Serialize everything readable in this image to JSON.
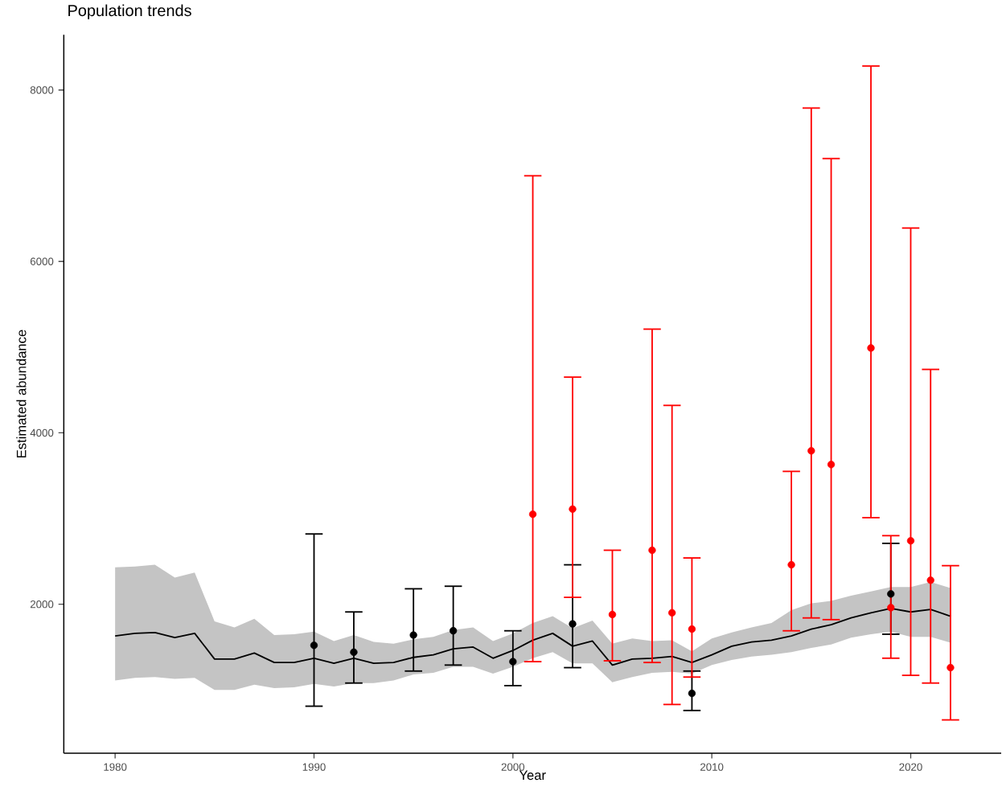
{
  "chart_data": {
    "type": "line",
    "title": "Population trends",
    "xlabel": "Year",
    "ylabel": "Estimated abundance",
    "xlim": [
      1977.42,
      2024.55
    ],
    "ylim": [
      262,
      8645
    ],
    "xticks": [
      1980,
      1990,
      2000,
      2010,
      2020
    ],
    "yticks": [
      2000,
      4000,
      6000,
      8000
    ],
    "grid": false,
    "series": [
      {
        "color": "#000000",
        "marker": "none",
        "x": [
          1980,
          1981,
          1982,
          1983,
          1984,
          1985,
          1986,
          1987,
          1988,
          1989,
          1990,
          1991,
          1992,
          1993,
          1994,
          1995,
          1996,
          1997,
          1998,
          1999,
          2000,
          2001,
          2002,
          2003,
          2004,
          2005,
          2006,
          2007,
          2008,
          2009,
          2010,
          2011,
          2012,
          2013,
          2014,
          2015,
          2016,
          2017,
          2018,
          2019,
          2020,
          2021,
          2022
        ],
        "values": [
          1630,
          1660,
          1670,
          1610,
          1660,
          1360,
          1360,
          1430,
          1320,
          1320,
          1370,
          1310,
          1370,
          1310,
          1320,
          1380,
          1410,
          1480,
          1500,
          1370,
          1460,
          1580,
          1660,
          1510,
          1570,
          1290,
          1360,
          1370,
          1390,
          1320,
          1410,
          1510,
          1560,
          1580,
          1630,
          1710,
          1760,
          1840,
          1900,
          1950,
          1910,
          1940,
          1860
        ],
        "lower": [
          1110,
          1140,
          1150,
          1130,
          1140,
          1000,
          1000,
          1060,
          1020,
          1030,
          1070,
          1040,
          1080,
          1080,
          1110,
          1180,
          1200,
          1270,
          1270,
          1190,
          1270,
          1370,
          1440,
          1310,
          1310,
          1090,
          1150,
          1200,
          1210,
          1190,
          1290,
          1350,
          1390,
          1410,
          1440,
          1490,
          1530,
          1610,
          1650,
          1680,
          1620,
          1620,
          1550
        ],
        "upper": [
          2430,
          2440,
          2460,
          2310,
          2370,
          1800,
          1730,
          1830,
          1640,
          1650,
          1680,
          1570,
          1640,
          1560,
          1540,
          1590,
          1620,
          1700,
          1730,
          1570,
          1660,
          1780,
          1860,
          1720,
          1810,
          1540,
          1600,
          1570,
          1580,
          1450,
          1600,
          1670,
          1730,
          1780,
          1930,
          2010,
          2040,
          2100,
          2150,
          2200,
          2200,
          2260,
          2190
        ]
      },
      {
        "type": "scatter",
        "color": "#000000",
        "marker": "circle",
        "x": [
          1990,
          1992,
          1995,
          1997,
          2000,
          2003,
          2009,
          2019
        ],
        "values": [
          1520,
          1440,
          1640,
          1690,
          1330,
          1770,
          960,
          2120
        ],
        "errors": [
          [
            810,
            2820
          ],
          [
            1080,
            1910
          ],
          [
            1220,
            2180
          ],
          [
            1290,
            2210
          ],
          [
            1050,
            1690
          ],
          [
            1260,
            2460
          ],
          [
            760,
            1220
          ],
          [
            1650,
            2710
          ]
        ]
      },
      {
        "type": "scatter",
        "color": "#ff0000",
        "marker": "circle",
        "x": [
          2001,
          2003,
          2005,
          2007,
          2008,
          2009,
          2014,
          2015,
          2016,
          2018,
          2019,
          2020,
          2021,
          2022
        ],
        "values": [
          3050,
          3110,
          1880,
          2630,
          1900,
          1710,
          2460,
          3790,
          3630,
          4990,
          1960,
          2740,
          2280,
          1260
        ],
        "errors": [
          [
            1330,
            7000
          ],
          [
            2080,
            4650
          ],
          [
            1340,
            2630
          ],
          [
            1320,
            5210
          ],
          [
            830,
            4320
          ],
          [
            1150,
            2540
          ],
          [
            1690,
            3550
          ],
          [
            1840,
            7790
          ],
          [
            1820,
            7200
          ],
          [
            3010,
            8280
          ],
          [
            1370,
            2800
          ],
          [
            1170,
            6390
          ],
          [
            1080,
            4740
          ],
          [
            650,
            2450
          ]
        ]
      }
    ]
  }
}
